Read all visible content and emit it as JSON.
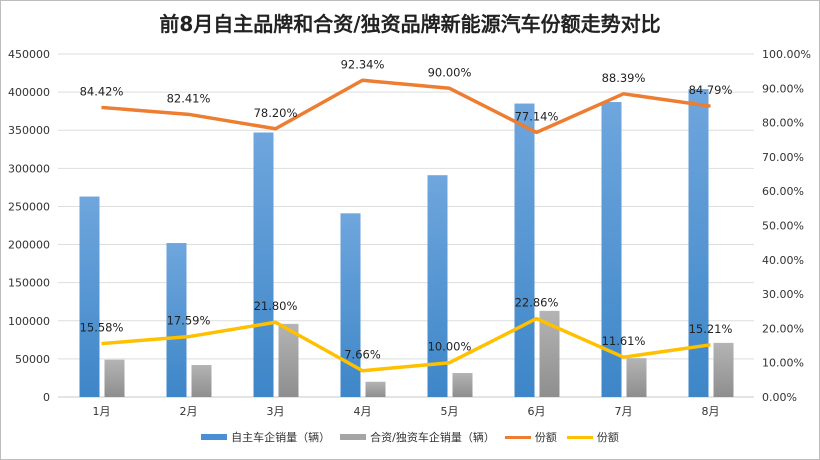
{
  "chart_data": {
    "type": "bar+line",
    "title": "前8月自主品牌和合资/独资品牌新能源汽车份额走势对比",
    "categories": [
      "1月",
      "2月",
      "3月",
      "4月",
      "5月",
      "6月",
      "7月",
      "8月"
    ],
    "y_left": {
      "ylim": [
        0,
        450000
      ],
      "ticks": [
        "0",
        "50000",
        "100000",
        "150000",
        "200000",
        "250000",
        "300000",
        "350000",
        "400000",
        "450000"
      ]
    },
    "y_right": {
      "ylim": [
        0,
        100
      ],
      "ticks": [
        "0.00%",
        "10.00%",
        "20.00%",
        "30.00%",
        "40.00%",
        "50.00%",
        "60.00%",
        "70.00%",
        "80.00%",
        "90.00%",
        "100.00%"
      ]
    },
    "grid": true,
    "legend_position": "bottom",
    "series": [
      {
        "name": "自主车企销量（辆）",
        "type": "bar",
        "axis": "left",
        "color": "#4a8fd4",
        "values": [
          263000,
          202000,
          347000,
          241000,
          291000,
          385000,
          387000,
          404000
        ]
      },
      {
        "name": "合资/独资车企销量（辆）",
        "type": "bar",
        "axis": "left",
        "color": "#a5a5a5",
        "values": [
          49000,
          42000,
          96000,
          20000,
          31500,
          113000,
          51000,
          71000
        ]
      },
      {
        "name": "份额",
        "type": "line",
        "axis": "right",
        "color": "#ed7d31",
        "values": [
          84.42,
          82.41,
          78.2,
          92.34,
          90.0,
          77.14,
          88.39,
          84.79
        ],
        "labels": [
          "84.42%",
          "82.41%",
          "78.20%",
          "92.34%",
          "90.00%",
          "77.14%",
          "88.39%",
          "84.79%"
        ]
      },
      {
        "name": "份额",
        "type": "line",
        "axis": "right",
        "color": "#ffc000",
        "values": [
          15.58,
          17.59,
          21.8,
          7.66,
          10.0,
          22.86,
          11.61,
          15.21
        ],
        "labels": [
          "15.58%",
          "17.59%",
          "21.80%",
          "7.66%",
          "10.00%",
          "22.86%",
          "11.61%",
          "15.21%"
        ]
      }
    ]
  }
}
